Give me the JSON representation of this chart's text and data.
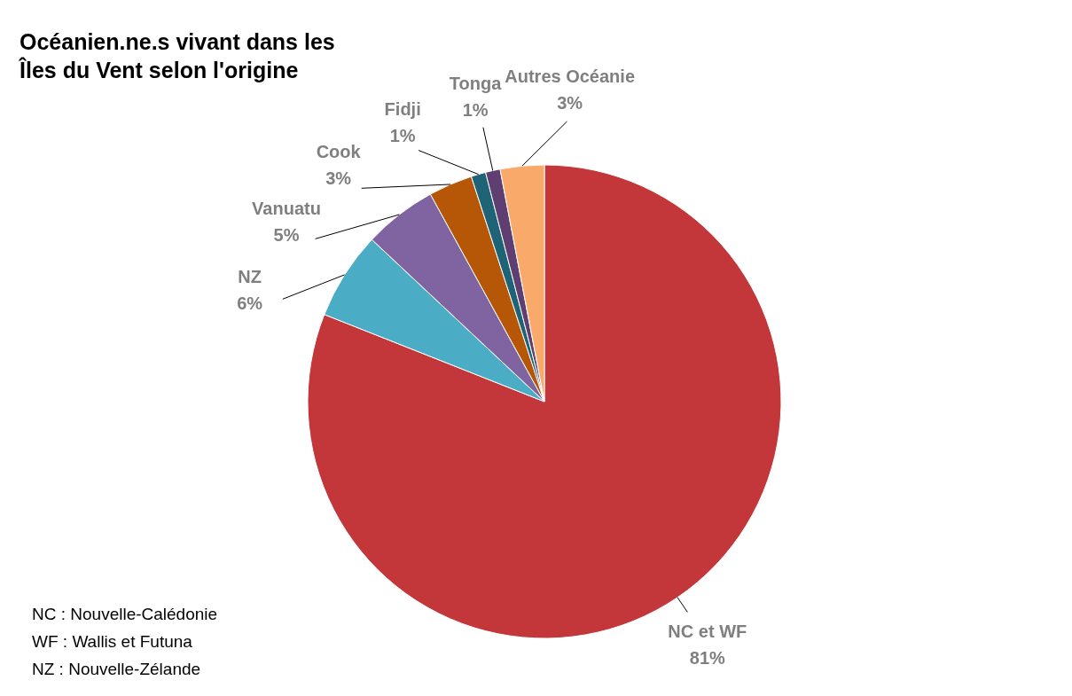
{
  "chart_data": {
    "type": "pie",
    "title": "Océanien.ne.s vivant dans les\nÎles du Vent selon l'origine",
    "categories": [
      "NC et WF",
      "NZ",
      "Vanuatu",
      "Cook",
      "Fidji",
      "Tonga",
      "Autres Océanie"
    ],
    "values": [
      81,
      6,
      5,
      3,
      1,
      1,
      3
    ],
    "colors": [
      "#c3363a",
      "#4bacc6",
      "#8064a2",
      "#b65708",
      "#1f6476",
      "#5f3f72",
      "#f9a96a"
    ],
    "value_labels": [
      "81%",
      "6%",
      "5%",
      "3%",
      "1%",
      "1%",
      "3%"
    ],
    "annotations": [
      "NC : Nouvelle-Calédonie",
      "WF : Wallis et Futuna",
      "NZ : Nouvelle-Zélande"
    ]
  }
}
